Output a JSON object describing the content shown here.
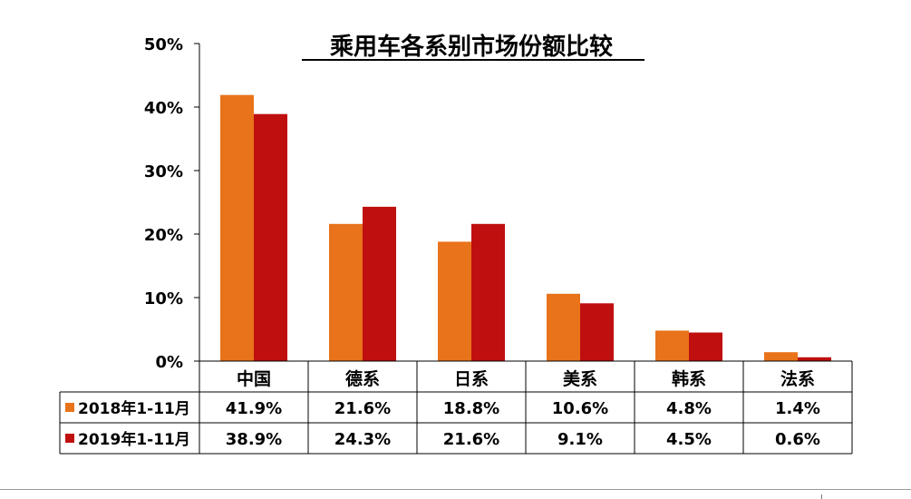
{
  "chart_data": {
    "type": "bar",
    "title": "乘用车各系别市场份额比较",
    "categories": [
      "中国",
      "德系",
      "日系",
      "美系",
      "韩系",
      "法系"
    ],
    "series": [
      {
        "name": "2018年1-11月",
        "color": "#E8731A",
        "values": [
          41.9,
          21.6,
          18.8,
          10.6,
          4.8,
          1.4
        ],
        "labels": [
          "41.9%",
          "21.6%",
          "18.8%",
          "10.6%",
          "4.8%",
          "1.4%"
        ]
      },
      {
        "name": "2019年1-11月",
        "color": "#C00F0F",
        "values": [
          38.9,
          24.3,
          21.6,
          9.1,
          4.5,
          0.6
        ],
        "labels": [
          "38.9%",
          "24.3%",
          "21.6%",
          "9.1%",
          "4.5%",
          "0.6%"
        ]
      }
    ],
    "ylim": [
      0,
      50
    ],
    "yticks": [
      0,
      10,
      20,
      30,
      40,
      50
    ],
    "ytick_labels": [
      "0%",
      "10%",
      "20%",
      "30%",
      "40%",
      "50%"
    ],
    "xlabel": "",
    "ylabel": "",
    "grid": false,
    "legend": "data-table"
  }
}
